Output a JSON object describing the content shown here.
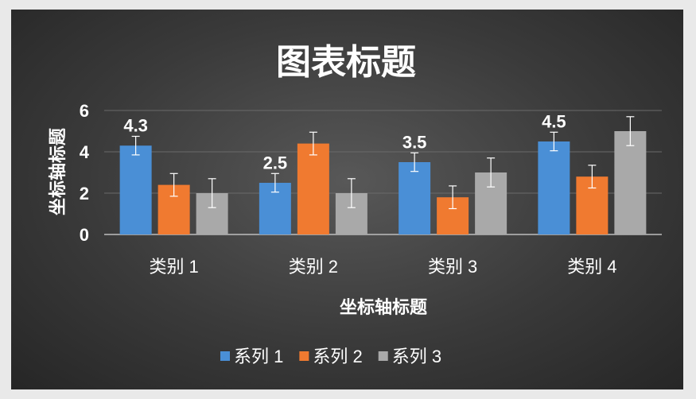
{
  "chart_data": {
    "type": "bar",
    "title": "图表标题",
    "xlabel": "坐标轴标题",
    "ylabel": "坐标轴标题",
    "ylim": [
      0,
      6
    ],
    "yticks": [
      "0",
      "2",
      "4",
      "6"
    ],
    "categories": [
      "类别 1",
      "类别 2",
      "类别 3",
      "类别 4"
    ],
    "series": [
      {
        "name": "系列 1",
        "values": [
          4.3,
          2.5,
          3.5,
          4.5
        ],
        "error": [
          0.45,
          0.45,
          0.45,
          0.45
        ],
        "labels": [
          "4.3",
          "2.5",
          "3.5",
          "4.5"
        ],
        "color": "#4a8fd6"
      },
      {
        "name": "系列 2",
        "values": [
          2.4,
          4.4,
          1.8,
          2.8
        ],
        "error": [
          0.55,
          0.55,
          0.55,
          0.55
        ],
        "color": "#f07a30"
      },
      {
        "name": "系列 3",
        "values": [
          2.0,
          2.0,
          3.0,
          5.0
        ],
        "error": [
          0.7,
          0.7,
          0.7,
          0.7
        ],
        "color": "#a9a9a9"
      }
    ],
    "grid": true,
    "legend": "bottom"
  }
}
